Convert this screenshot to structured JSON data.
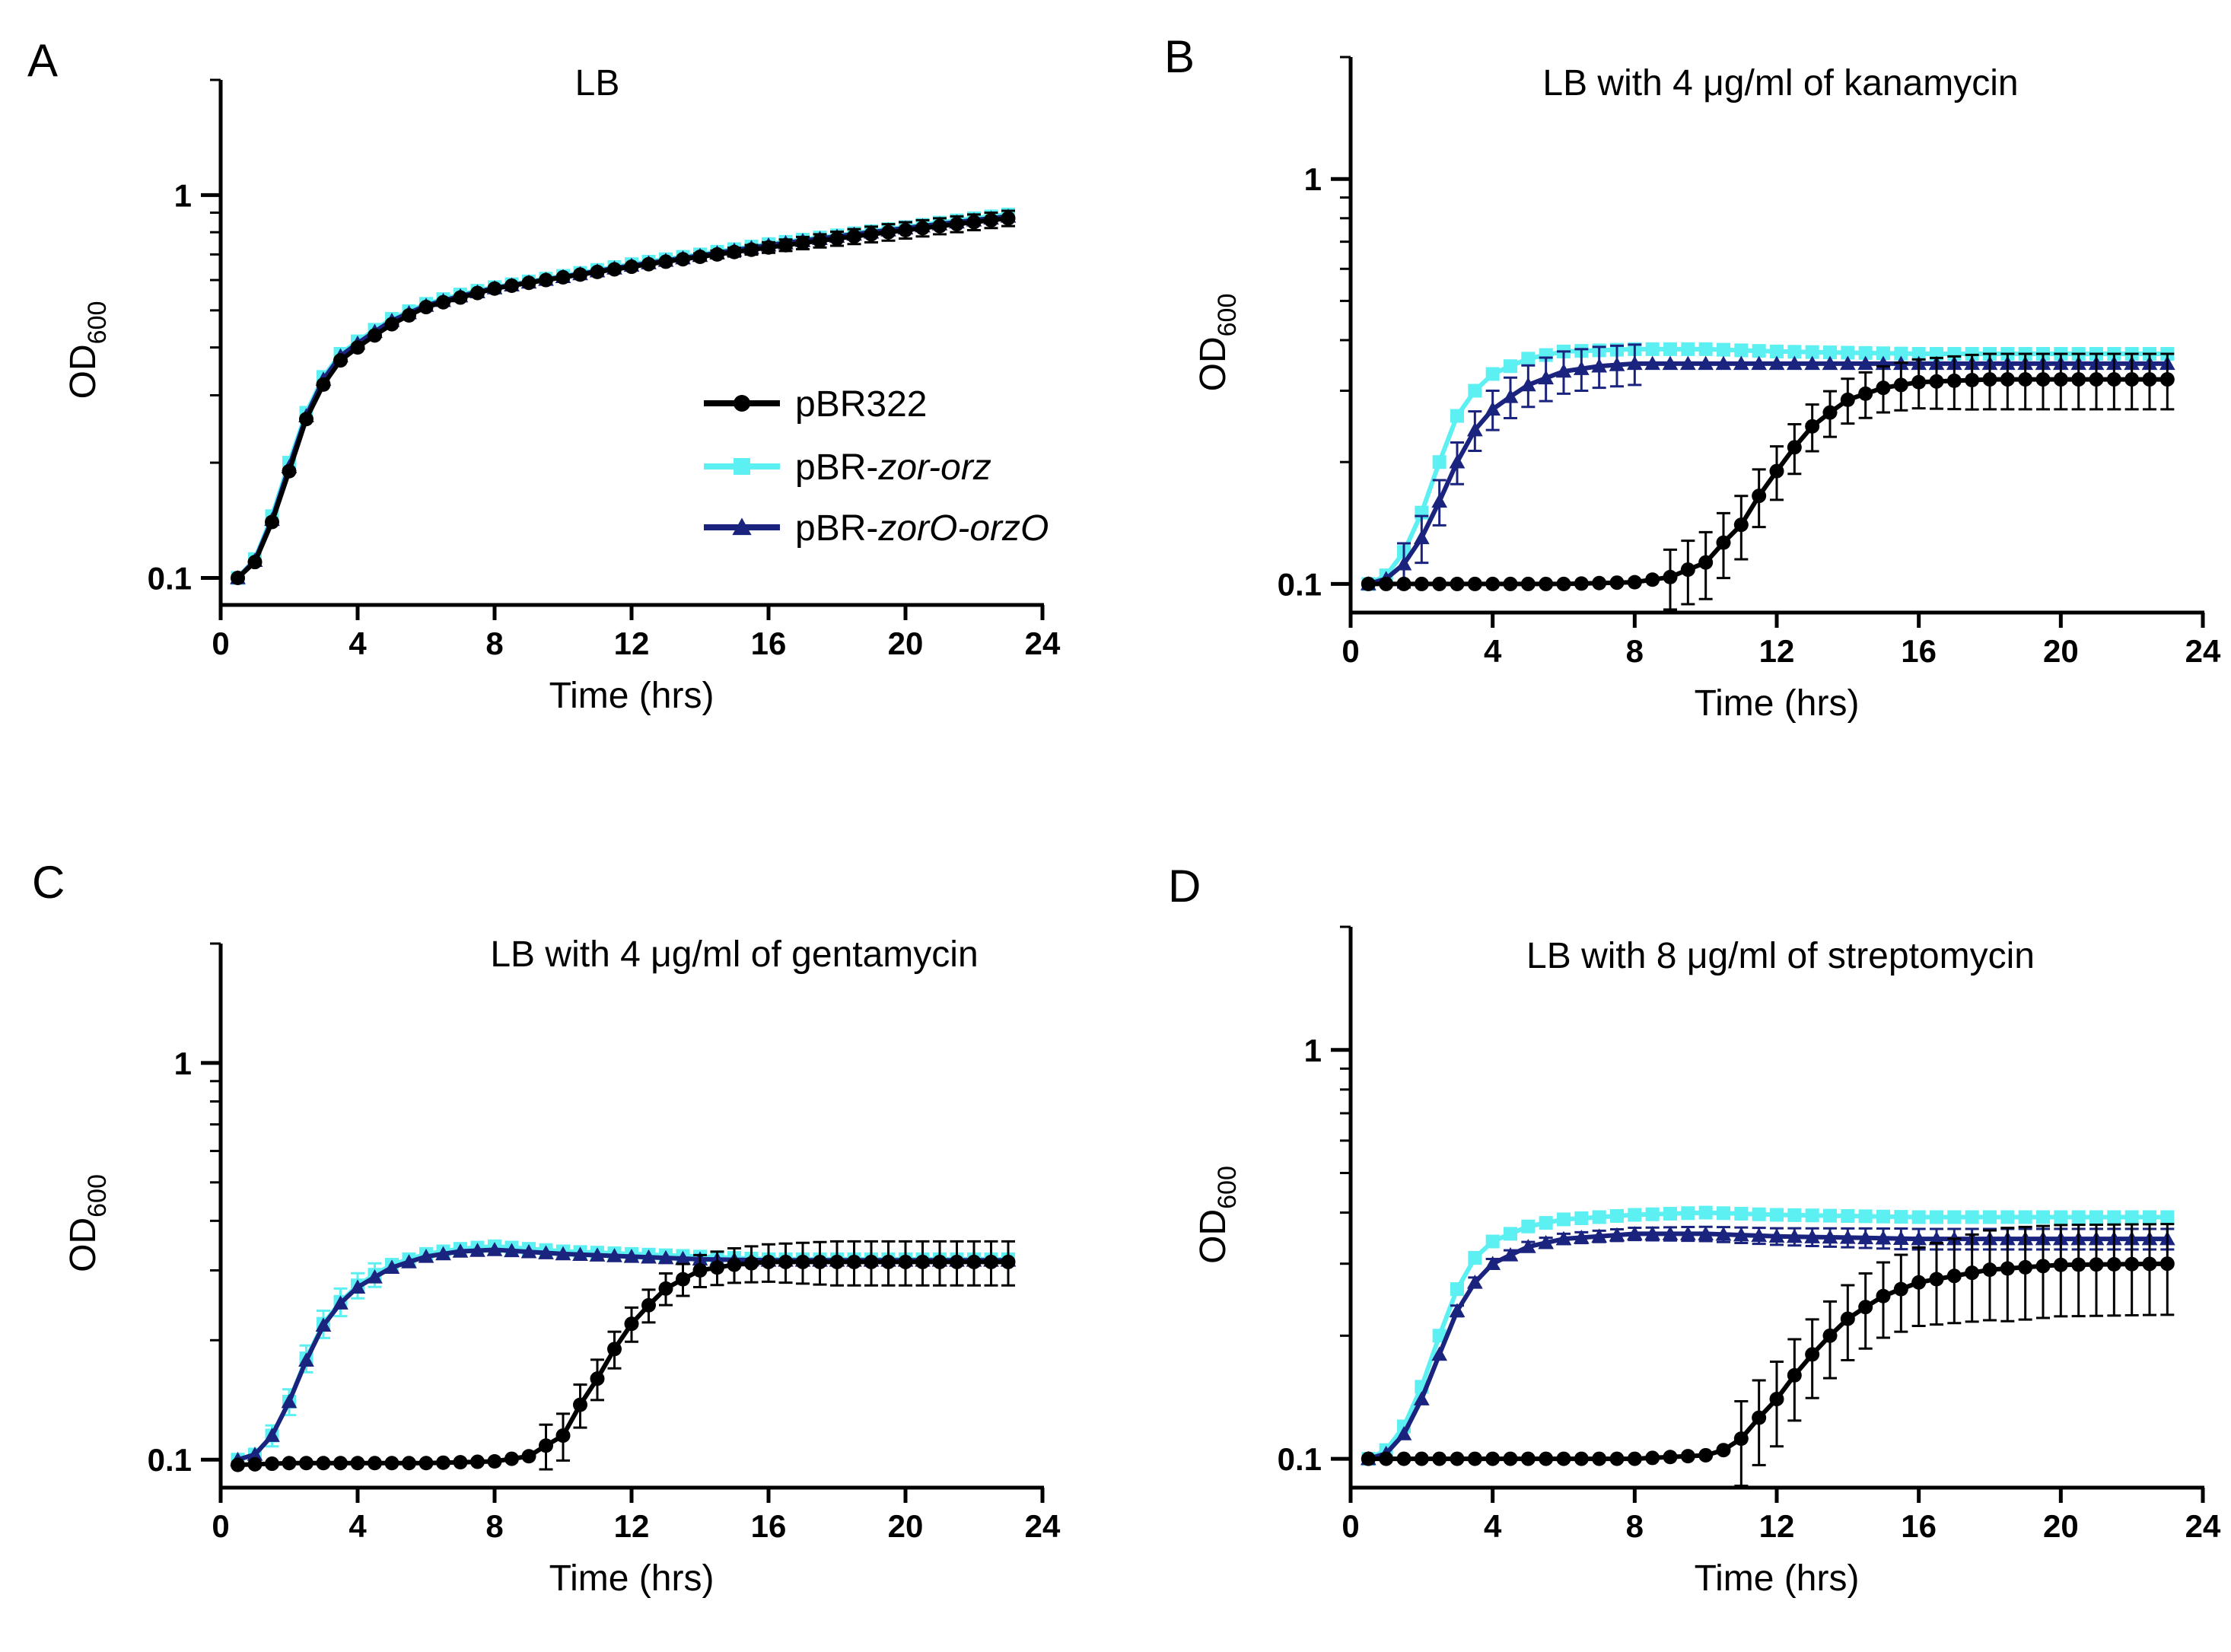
{
  "figure": {
    "series_styles": [
      {
        "name": "pBR322",
        "color": "#000000",
        "marker": "circle"
      },
      {
        "name": "pBR-zor-orz",
        "color": "#5CF0F2",
        "marker": "square"
      },
      {
        "name": "pBR-zorO-orzO",
        "color": "#1A237E",
        "marker": "triangle"
      }
    ],
    "legend": {
      "position": "center-right of panel A",
      "items": [
        {
          "prefix": "pBR322",
          "italic": ""
        },
        {
          "prefix": "pBR-",
          "italic": "zor-orz"
        },
        {
          "prefix": "pBR-",
          "italic": "zorO-orzO"
        }
      ]
    }
  },
  "chart_data": [
    {
      "panel": "A",
      "type": "line",
      "title": "LB",
      "xlabel": "Time (hrs)",
      "ylabel_main": "OD",
      "ylabel_sub": "600",
      "xscale": "linear",
      "yscale": "log",
      "xlim": [
        0,
        24
      ],
      "ylim": [
        0.085,
        2.0
      ],
      "xticks": [
        0,
        4,
        8,
        12,
        16,
        20,
        24
      ],
      "yticks": [
        {
          "value": 0.1,
          "label": "0.1"
        },
        {
          "value": 1,
          "label": "1"
        }
      ],
      "x": [
        0.5,
        3.5,
        6,
        8,
        10,
        12,
        14,
        16,
        18,
        20,
        23
      ],
      "series": [
        {
          "name": "pBR322",
          "knots": [
            [
              0.5,
              0.1
            ],
            [
              1,
              0.11
            ],
            [
              1.5,
              0.14
            ],
            [
              2,
              0.19
            ],
            [
              2.5,
              0.26
            ],
            [
              3,
              0.32
            ],
            [
              3.5,
              0.37
            ],
            [
              4,
              0.4
            ],
            [
              5,
              0.46
            ],
            [
              6,
              0.51
            ],
            [
              7,
              0.54
            ],
            [
              8,
              0.57
            ],
            [
              9,
              0.59
            ],
            [
              10,
              0.61
            ],
            [
              12,
              0.65
            ],
            [
              14,
              0.69
            ],
            [
              16,
              0.73
            ],
            [
              18,
              0.77
            ],
            [
              20,
              0.81
            ],
            [
              22,
              0.85
            ],
            [
              23,
              0.87
            ]
          ],
          "err_start": 14,
          "err_end": 23,
          "err_max": 0.04
        },
        {
          "name": "pBR-zor-orz",
          "knots": [
            [
              0.5,
              0.1
            ],
            [
              1,
              0.112
            ],
            [
              1.5,
              0.145
            ],
            [
              2,
              0.2
            ],
            [
              2.5,
              0.27
            ],
            [
              3,
              0.335
            ],
            [
              3.5,
              0.385
            ],
            [
              4,
              0.415
            ],
            [
              5,
              0.475
            ],
            [
              6,
              0.52
            ],
            [
              7,
              0.55
            ],
            [
              8,
              0.575
            ],
            [
              9,
              0.595
            ],
            [
              10,
              0.615
            ],
            [
              12,
              0.66
            ],
            [
              14,
              0.7
            ],
            [
              16,
              0.745
            ],
            [
              18,
              0.785
            ],
            [
              20,
              0.825
            ],
            [
              22,
              0.87
            ],
            [
              23,
              0.89
            ]
          ],
          "err_start": 0,
          "err_end": 0,
          "err_max": 0
        },
        {
          "name": "pBR-zorO-orzO",
          "knots": [
            [
              0.5,
              0.1
            ],
            [
              1,
              0.111
            ],
            [
              1.5,
              0.142
            ],
            [
              2,
              0.195
            ],
            [
              2.5,
              0.265
            ],
            [
              3,
              0.33
            ],
            [
              3.5,
              0.38
            ],
            [
              4,
              0.41
            ],
            [
              5,
              0.47
            ],
            [
              6,
              0.515
            ],
            [
              7,
              0.545
            ],
            [
              8,
              0.572
            ],
            [
              9,
              0.592
            ],
            [
              10,
              0.612
            ],
            [
              12,
              0.655
            ],
            [
              14,
              0.695
            ],
            [
              16,
              0.74
            ],
            [
              18,
              0.78
            ],
            [
              20,
              0.82
            ],
            [
              22,
              0.86
            ],
            [
              23,
              0.88
            ]
          ],
          "err_start": 0,
          "err_end": 0,
          "err_max": 0
        }
      ]
    },
    {
      "panel": "B",
      "type": "line",
      "title": "LB with 4 μg/ml of kanamycin",
      "xlabel": "Time (hrs)",
      "ylabel_main": "OD",
      "ylabel_sub": "600",
      "xscale": "linear",
      "yscale": "log",
      "xlim": [
        0,
        24
      ],
      "ylim": [
        0.085,
        2.0
      ],
      "xticks": [
        0,
        4,
        8,
        12,
        16,
        20,
        24
      ],
      "yticks": [
        {
          "value": 0.1,
          "label": "0.1"
        },
        {
          "value": 1,
          "label": "1"
        }
      ],
      "series": [
        {
          "name": "pBR322",
          "knots": [
            [
              0.5,
              0.1
            ],
            [
              2,
              0.1
            ],
            [
              4,
              0.1
            ],
            [
              6,
              0.1
            ],
            [
              8,
              0.101
            ],
            [
              9,
              0.104
            ],
            [
              10,
              0.113
            ],
            [
              11,
              0.14
            ],
            [
              12,
              0.19
            ],
            [
              13,
              0.245
            ],
            [
              14,
              0.285
            ],
            [
              15,
              0.305
            ],
            [
              16,
              0.315
            ],
            [
              18,
              0.32
            ],
            [
              20,
              0.32
            ],
            [
              23,
              0.32
            ]
          ],
          "err_start": 9,
          "err_end": 23,
          "err_max": 0.05
        },
        {
          "name": "pBR-zor-orz",
          "knots": [
            [
              0.5,
              0.1
            ],
            [
              1,
              0.105
            ],
            [
              1.5,
              0.12
            ],
            [
              2,
              0.15
            ],
            [
              2.5,
              0.2
            ],
            [
              3,
              0.26
            ],
            [
              3.5,
              0.3
            ],
            [
              4,
              0.33
            ],
            [
              5,
              0.36
            ],
            [
              6,
              0.375
            ],
            [
              8,
              0.38
            ],
            [
              10,
              0.38
            ],
            [
              12,
              0.375
            ],
            [
              16,
              0.37
            ],
            [
              20,
              0.37
            ],
            [
              23,
              0.37
            ]
          ],
          "err_start": 0,
          "err_end": 0,
          "err_max": 0
        },
        {
          "name": "pBR-zorO-orzO",
          "knots": [
            [
              0.5,
              0.1
            ],
            [
              1,
              0.103
            ],
            [
              1.5,
              0.112
            ],
            [
              2,
              0.13
            ],
            [
              2.5,
              0.16
            ],
            [
              3,
              0.2
            ],
            [
              3.5,
              0.24
            ],
            [
              4,
              0.27
            ],
            [
              5,
              0.31
            ],
            [
              6,
              0.335
            ],
            [
              7,
              0.345
            ],
            [
              8,
              0.35
            ],
            [
              10,
              0.35
            ],
            [
              12,
              0.35
            ],
            [
              16,
              0.35
            ],
            [
              20,
              0.35
            ],
            [
              23,
              0.35
            ]
          ],
          "err_start": 1.5,
          "err_end": 8,
          "err_max": 0.04
        }
      ]
    },
    {
      "panel": "C",
      "type": "line",
      "title": "LB with 4  μg/ml of gentamycin",
      "xlabel": "Time (hrs)",
      "ylabel_main": "OD",
      "ylabel_sub": "600",
      "xscale": "linear",
      "yscale": "log",
      "xlim": [
        0,
        24
      ],
      "ylim": [
        0.085,
        2.0
      ],
      "xticks": [
        0,
        4,
        8,
        12,
        16,
        20,
        24
      ],
      "yticks": [
        {
          "value": 0.1,
          "label": "0.1"
        },
        {
          "value": 1,
          "label": "1"
        }
      ],
      "series": [
        {
          "name": "pBR322",
          "knots": [
            [
              0.5,
              0.097
            ],
            [
              2,
              0.098
            ],
            [
              4,
              0.098
            ],
            [
              6,
              0.098
            ],
            [
              8,
              0.099
            ],
            [
              9,
              0.102
            ],
            [
              10,
              0.115
            ],
            [
              11,
              0.16
            ],
            [
              12,
              0.22
            ],
            [
              13,
              0.27
            ],
            [
              14,
              0.3
            ],
            [
              15,
              0.31
            ],
            [
              16,
              0.315
            ],
            [
              18,
              0.315
            ],
            [
              20,
              0.315
            ],
            [
              23,
              0.315
            ]
          ],
          "err_start": 9.5,
          "err_end": 23,
          "err_max": 0.04
        },
        {
          "name": "pBR-zor-orz",
          "knots": [
            [
              0.5,
              0.1
            ],
            [
              1,
              0.103
            ],
            [
              1.5,
              0.115
            ],
            [
              2,
              0.14
            ],
            [
              2.5,
              0.18
            ],
            [
              3,
              0.22
            ],
            [
              3.5,
              0.25
            ],
            [
              4,
              0.275
            ],
            [
              5,
              0.31
            ],
            [
              6,
              0.33
            ],
            [
              7,
              0.34
            ],
            [
              8,
              0.345
            ],
            [
              10,
              0.335
            ],
            [
              12,
              0.33
            ],
            [
              14,
              0.325
            ],
            [
              16,
              0.32
            ],
            [
              20,
              0.32
            ],
            [
              23,
              0.32
            ]
          ],
          "err_start": 1.5,
          "err_end": 4.5,
          "err_max": 0.02
        },
        {
          "name": "pBR-zorO-orzO",
          "knots": [
            [
              0.5,
              0.1
            ],
            [
              1,
              0.103
            ],
            [
              1.5,
              0.115
            ],
            [
              2,
              0.14
            ],
            [
              2.5,
              0.178
            ],
            [
              3,
              0.218
            ],
            [
              3.5,
              0.248
            ],
            [
              4,
              0.272
            ],
            [
              5,
              0.305
            ],
            [
              6,
              0.325
            ],
            [
              7,
              0.335
            ],
            [
              8,
              0.338
            ],
            [
              10,
              0.33
            ],
            [
              12,
              0.325
            ],
            [
              14,
              0.32
            ],
            [
              16,
              0.318
            ],
            [
              20,
              0.318
            ],
            [
              23,
              0.318
            ]
          ],
          "err_start": 0,
          "err_end": 0,
          "err_max": 0
        }
      ]
    },
    {
      "panel": "D",
      "type": "line",
      "title": "LB with 8 μg/ml of streptomycin",
      "xlabel": "Time (hrs)",
      "ylabel_main": "OD",
      "ylabel_sub": "600",
      "xscale": "linear",
      "yscale": "log",
      "xlim": [
        0,
        24
      ],
      "ylim": [
        0.085,
        2.0
      ],
      "xticks": [
        0,
        4,
        8,
        12,
        16,
        20,
        24
      ],
      "yticks": [
        {
          "value": 0.1,
          "label": "0.1"
        },
        {
          "value": 1,
          "label": "1"
        }
      ],
      "series": [
        {
          "name": "pBR322",
          "knots": [
            [
              0.5,
              0.1
            ],
            [
              2,
              0.1
            ],
            [
              4,
              0.1
            ],
            [
              6,
              0.1
            ],
            [
              8,
              0.1
            ],
            [
              10,
              0.102
            ],
            [
              10.5,
              0.105
            ],
            [
              11,
              0.112
            ],
            [
              12,
              0.14
            ],
            [
              13,
              0.18
            ],
            [
              14,
              0.22
            ],
            [
              15,
              0.25
            ],
            [
              16,
              0.27
            ],
            [
              18,
              0.29
            ],
            [
              20,
              0.298
            ],
            [
              23,
              0.3
            ]
          ],
          "err_start": 11,
          "err_end": 23,
          "err_max": 0.075
        },
        {
          "name": "pBR-zor-orz",
          "knots": [
            [
              0.5,
              0.1
            ],
            [
              1,
              0.105
            ],
            [
              1.5,
              0.12
            ],
            [
              2,
              0.15
            ],
            [
              2.5,
              0.2
            ],
            [
              3,
              0.26
            ],
            [
              3.5,
              0.31
            ],
            [
              4,
              0.34
            ],
            [
              5,
              0.37
            ],
            [
              6,
              0.385
            ],
            [
              8,
              0.395
            ],
            [
              10,
              0.4
            ],
            [
              12,
              0.395
            ],
            [
              16,
              0.39
            ],
            [
              20,
              0.39
            ],
            [
              23,
              0.39
            ]
          ],
          "err_start": 0,
          "err_end": 0,
          "err_max": 0
        },
        {
          "name": "pBR-zorO-orzO",
          "knots": [
            [
              0.5,
              0.1
            ],
            [
              1,
              0.103
            ],
            [
              1.5,
              0.115
            ],
            [
              2,
              0.14
            ],
            [
              2.5,
              0.18
            ],
            [
              3,
              0.23
            ],
            [
              3.5,
              0.27
            ],
            [
              4,
              0.3
            ],
            [
              5,
              0.33
            ],
            [
              6,
              0.345
            ],
            [
              8,
              0.355
            ],
            [
              10,
              0.355
            ],
            [
              12,
              0.35
            ],
            [
              16,
              0.345
            ],
            [
              20,
              0.345
            ],
            [
              23,
              0.345
            ]
          ],
          "err_start": 3,
          "err_end": 23,
          "err_max": 0.02
        }
      ]
    }
  ]
}
